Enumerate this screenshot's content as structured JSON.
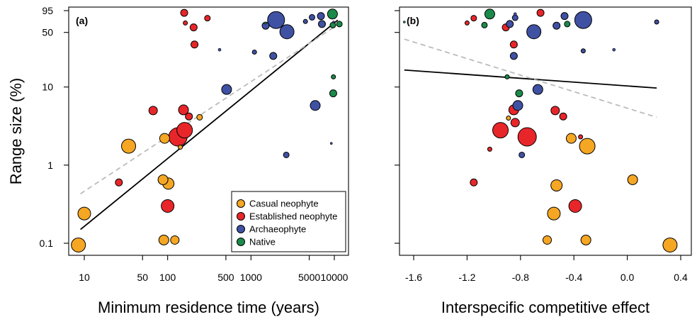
{
  "chart_data": [
    {
      "type": "scatter",
      "panel_label": "(a)",
      "xlabel": "Minimum residence time (years)",
      "ylabel": "Range size (%)",
      "x_scale": "log",
      "y_scale": "log",
      "xlim": [
        7,
        13000
      ],
      "ylim": [
        0.08,
        95
      ],
      "x_ticks": [
        10,
        50,
        100,
        500,
        1000,
        5000,
        10000
      ],
      "x_tick_labels": [
        "10",
        "50",
        "100",
        "500",
        "1000",
        "5000",
        "10000"
      ],
      "y_ticks": [
        0.1,
        1,
        10,
        50,
        95
      ],
      "y_tick_labels": [
        "0.1",
        "1",
        "10",
        "50",
        "95"
      ],
      "grid": false,
      "legend": {
        "position": "bottom-right",
        "entries": [
          {
            "label": "Casual neophyte",
            "color": "#F5A623"
          },
          {
            "label": "Established neophyte",
            "color": "#E8262A"
          },
          {
            "label": "Archaeophyte",
            "color": "#3F51A3"
          },
          {
            "label": "Native",
            "color": "#1B8A4A"
          }
        ]
      },
      "fit_lines": [
        {
          "style": "solid",
          "color": "#000000",
          "x": [
            9,
            11000
          ],
          "y": [
            0.15,
            72
          ]
        },
        {
          "style": "dashed",
          "color": "#BBBBBB",
          "x": [
            9,
            11000
          ],
          "y": [
            0.43,
            63
          ]
        }
      ],
      "series": [
        {
          "name": "Casual neophyte",
          "color": "#F5A623",
          "points": [
            {
              "x": 8.5,
              "y": 0.095,
              "s": 10
            },
            {
              "x": 10,
              "y": 0.24,
              "s": 9
            },
            {
              "x": 34,
              "y": 1.75,
              "s": 10
            },
            {
              "x": 90,
              "y": 0.11,
              "s": 7
            },
            {
              "x": 92,
              "y": 2.2,
              "s": 7
            },
            {
              "x": 88,
              "y": 0.65,
              "s": 7
            },
            {
              "x": 102,
              "y": 0.58,
              "s": 8
            },
            {
              "x": 122,
              "y": 0.11,
              "s": 6
            },
            {
              "x": 142,
              "y": 1.7,
              "s": 3
            },
            {
              "x": 242,
              "y": 4.1,
              "s": 4
            }
          ]
        },
        {
          "name": "Established neophyte",
          "color": "#E8262A",
          "points": [
            {
              "x": 26,
              "y": 0.6,
              "s": 5
            },
            {
              "x": 67,
              "y": 5.0,
              "s": 6
            },
            {
              "x": 100,
              "y": 0.3,
              "s": 9
            },
            {
              "x": 133,
              "y": 2.3,
              "s": 13
            },
            {
              "x": 160,
              "y": 2.8,
              "s": 11
            },
            {
              "x": 155,
              "y": 5.1,
              "s": 7
            },
            {
              "x": 180,
              "y": 4.2,
              "s": 5
            },
            {
              "x": 158,
              "y": 89,
              "s": 5
            },
            {
              "x": 163,
              "y": 66,
              "s": 3
            },
            {
              "x": 210,
              "y": 35,
              "s": 5
            },
            {
              "x": 205,
              "y": 58,
              "s": 5
            },
            {
              "x": 300,
              "y": 76,
              "s": 4
            }
          ]
        },
        {
          "name": "Archaeophyte",
          "color": "#3F51A3",
          "points": [
            {
              "x": 420,
              "y": 30,
              "s": 2
            },
            {
              "x": 510,
              "y": 9.3,
              "s": 7
            },
            {
              "x": 1100,
              "y": 28,
              "s": 3
            },
            {
              "x": 1500,
              "y": 61,
              "s": 5
            },
            {
              "x": 1850,
              "y": 25,
              "s": 5
            },
            {
              "x": 2000,
              "y": 72,
              "s": 12
            },
            {
              "x": 2700,
              "y": 51,
              "s": 10
            },
            {
              "x": 2650,
              "y": 1.35,
              "s": 4
            },
            {
              "x": 4500,
              "y": 69,
              "s": 3
            },
            {
              "x": 5900,
              "y": 5.8,
              "s": 7
            },
            {
              "x": 5400,
              "y": 78,
              "s": 4
            },
            {
              "x": 6900,
              "y": 81,
              "s": 5
            },
            {
              "x": 7100,
              "y": 64,
              "s": 5
            },
            {
              "x": 9800,
              "y": 68,
              "s": 1.5
            },
            {
              "x": 9200,
              "y": 1.9,
              "s": 1.5
            }
          ]
        },
        {
          "name": "Native",
          "color": "#1B8A4A",
          "points": [
            {
              "x": 1480,
              "y": 66,
              "s": 1.5
            },
            {
              "x": 9500,
              "y": 86,
              "s": 7
            },
            {
              "x": 9600,
              "y": 62,
              "s": 4
            },
            {
              "x": 11500,
              "y": 64,
              "s": 4
            },
            {
              "x": 9700,
              "y": 8.3,
              "s": 5
            },
            {
              "x": 9750,
              "y": 13.5,
              "s": 3
            }
          ]
        }
      ]
    },
    {
      "type": "scatter",
      "panel_label": "(b)",
      "xlabel": "Interspecific competitive effect",
      "ylabel": "",
      "x_scale": "linear",
      "y_scale": "log",
      "xlim": [
        -1.7,
        0.42
      ],
      "ylim": [
        0.08,
        95
      ],
      "x_ticks": [
        -1.6,
        -1.2,
        -0.8,
        -0.4,
        0.0,
        0.4
      ],
      "x_tick_labels": [
        "-1.6",
        "-1.2",
        "-0.8",
        "-0.4",
        "0.0",
        "0.4"
      ],
      "y_ticks": [
        0.1,
        1,
        10,
        50,
        95
      ],
      "grid": false,
      "fit_lines": [
        {
          "style": "solid",
          "color": "#000000",
          "x": [
            -1.67,
            0.22
          ],
          "y": [
            16.5,
            9.7
          ]
        },
        {
          "style": "dashed",
          "color": "#BBBBBB",
          "x": [
            -1.67,
            0.22
          ],
          "y": [
            41,
            4.1
          ]
        }
      ],
      "series": [
        {
          "name": "Casual neophyte",
          "color": "#F5A623",
          "points": [
            {
              "x": -0.89,
              "y": 4.0,
              "s": 3
            },
            {
              "x": -0.53,
              "y": 0.55,
              "s": 8
            },
            {
              "x": -0.55,
              "y": 0.24,
              "s": 9
            },
            {
              "x": -0.6,
              "y": 0.11,
              "s": 6
            },
            {
              "x": -0.42,
              "y": 2.2,
              "s": 7
            },
            {
              "x": -0.3,
              "y": 1.75,
              "s": 11
            },
            {
              "x": -0.31,
              "y": 0.11,
              "s": 7
            },
            {
              "x": 0.04,
              "y": 0.65,
              "s": 7
            },
            {
              "x": 0.32,
              "y": 0.095,
              "s": 10
            }
          ]
        },
        {
          "name": "Established neophyte",
          "color": "#E8262A",
          "points": [
            {
              "x": -0.65,
              "y": 89,
              "s": 5
            },
            {
              "x": -1.15,
              "y": 76,
              "s": 4
            },
            {
              "x": -1.2,
              "y": 66,
              "s": 3
            },
            {
              "x": -0.91,
              "y": 58,
              "s": 5
            },
            {
              "x": -0.85,
              "y": 35,
              "s": 5
            },
            {
              "x": -0.85,
              "y": 5.1,
              "s": 7
            },
            {
              "x": -0.84,
              "y": 3.5,
              "s": 6
            },
            {
              "x": -0.95,
              "y": 2.8,
              "s": 11
            },
            {
              "x": -0.75,
              "y": 2.3,
              "s": 13
            },
            {
              "x": -0.54,
              "y": 5.0,
              "s": 6
            },
            {
              "x": -0.48,
              "y": 4.2,
              "s": 5
            },
            {
              "x": -0.35,
              "y": 2.3,
              "s": 3
            },
            {
              "x": -1.03,
              "y": 1.6,
              "s": 3
            },
            {
              "x": -1.15,
              "y": 0.6,
              "s": 5
            },
            {
              "x": -0.39,
              "y": 0.3,
              "s": 9
            }
          ]
        },
        {
          "name": "Archaeophyte",
          "color": "#3F51A3",
          "points": [
            {
              "x": -0.84,
              "y": 86,
              "s": 2
            },
            {
              "x": -0.84,
              "y": 77,
              "s": 4
            },
            {
              "x": -0.47,
              "y": 81,
              "s": 5
            },
            {
              "x": -0.33,
              "y": 72,
              "s": 12
            },
            {
              "x": 0.22,
              "y": 68,
              "s": 3
            },
            {
              "x": -0.88,
              "y": 64,
              "s": 5
            },
            {
              "x": -0.53,
              "y": 61,
              "s": 5
            },
            {
              "x": -0.7,
              "y": 51,
              "s": 10
            },
            {
              "x": -0.33,
              "y": 29,
              "s": 3
            },
            {
              "x": -0.85,
              "y": 25,
              "s": 5
            },
            {
              "x": -0.67,
              "y": 9.3,
              "s": 7
            },
            {
              "x": -0.82,
              "y": 5.8,
              "s": 7
            },
            {
              "x": -0.79,
              "y": 1.35,
              "s": 4
            },
            {
              "x": -0.1,
              "y": 30,
              "s": 2
            }
          ]
        },
        {
          "name": "Native",
          "color": "#1B8A4A",
          "points": [
            {
              "x": -1.03,
              "y": 86,
              "s": 7
            },
            {
              "x": -1.67,
              "y": 68,
              "s": 1.5
            },
            {
              "x": -1.07,
              "y": 62,
              "s": 4
            },
            {
              "x": -0.45,
              "y": 64,
              "s": 4
            },
            {
              "x": -0.81,
              "y": 8.3,
              "s": 5
            },
            {
              "x": -0.9,
              "y": 13.5,
              "s": 3
            }
          ]
        }
      ]
    }
  ]
}
